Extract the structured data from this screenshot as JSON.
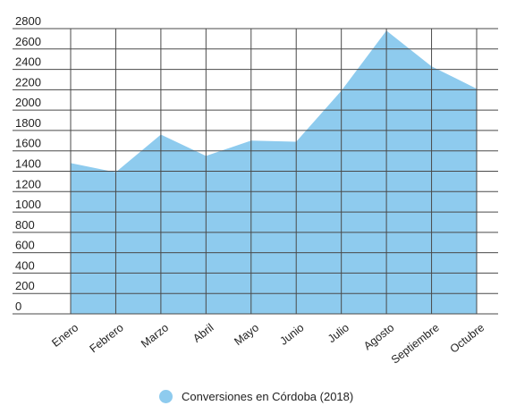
{
  "chart_data": {
    "type": "area",
    "categories": [
      "Enero",
      "Febrero",
      "Marzo",
      "Abril",
      "Mayo",
      "Junio",
      "Julio",
      "Agosto",
      "Septiembre",
      "Octubre"
    ],
    "series": [
      {
        "name": "Conversiones en Córdoba (2018)",
        "values": [
          1480,
          1390,
          1760,
          1550,
          1700,
          1690,
          2190,
          2780,
          2430,
          2210
        ],
        "color": "#8ecbee"
      }
    ],
    "yticks": [
      0,
      200,
      400,
      600,
      800,
      1000,
      1200,
      1400,
      1600,
      1800,
      2000,
      2200,
      2400,
      2600,
      2800
    ],
    "ylim": [
      0,
      2800
    ],
    "grid": true,
    "legend_position": "bottom-center"
  }
}
